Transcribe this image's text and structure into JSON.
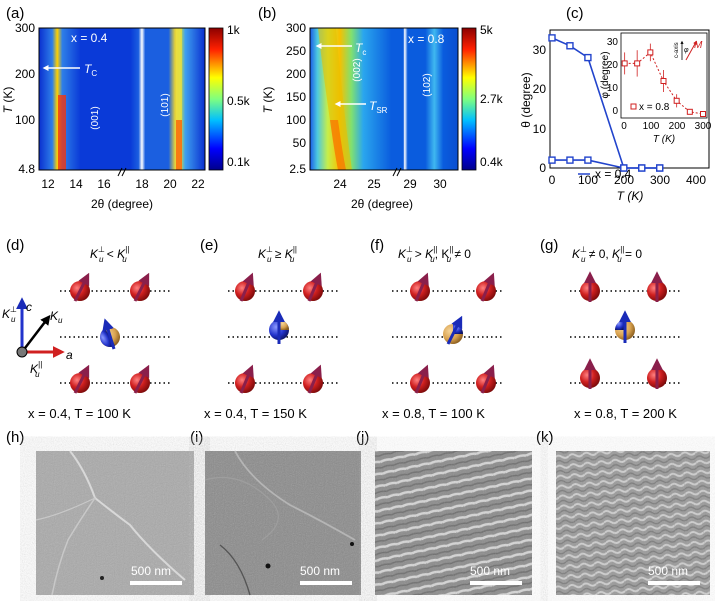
{
  "figure": {
    "panel_labels": [
      "(a)",
      "(b)",
      "(c)",
      "(d)",
      "(e)",
      "(f)",
      "(g)",
      "(h)",
      "(i)",
      "(j)",
      "(k)"
    ],
    "colors": {
      "spin_red": "#c81d1d",
      "spin_blue": "#2233cc",
      "spin_gold": "#d9a24f",
      "arrow_maroon": "#8a1f4b",
      "axis_blue": "#2233cc",
      "axis_red": "#d02020",
      "plot_blue": "#2244cc",
      "inset_red": "#d02020",
      "map_low": "#00008b",
      "map_high": "#8b0000"
    }
  },
  "panel_a": {
    "x_label_text": "x = 0.4",
    "tc": "T",
    "tc_sub": "C",
    "peak1": "(001)",
    "peak2": "(101)",
    "ylabel_T": "T",
    "ylabel_K": " (K)",
    "yticks": [
      "300",
      "200",
      "100",
      "4.8"
    ],
    "xticks": [
      "12",
      "14",
      "16",
      "18",
      "20",
      "22"
    ],
    "xlabel": "2θ (degree)",
    "cbar": [
      "1k",
      "0.5k",
      "0.1k"
    ]
  },
  "panel_b": {
    "x_label_text": "x = 0.8",
    "tc": "T",
    "tc_sub": "c",
    "tsr": "T",
    "tsr_sub": "SR",
    "peak1": "(002)",
    "peak2": "(102)",
    "ylabel_T": "T",
    "ylabel_K": " (K)",
    "yticks": [
      "300",
      "250",
      "200",
      "150",
      "100",
      "50",
      "2.5"
    ],
    "xticks": [
      "24",
      "25",
      "29",
      "30"
    ],
    "xlabel": "2θ (degree)",
    "cbar": [
      "5k",
      "2.7k",
      "0.4k"
    ]
  },
  "panel_c": {
    "ylabel": "θ (degree)",
    "xlabel": "T (K)",
    "yticks": [
      "0",
      "10",
      "20",
      "30"
    ],
    "xticks": [
      "0",
      "100",
      "200",
      "300",
      "400"
    ],
    "legend": "x = 0.4",
    "inset": {
      "ylabel": "φ (degree)",
      "xlabel": "T (K)",
      "yticks": [
        "0",
        "10",
        "20",
        "30"
      ],
      "xticks": [
        "0",
        "100",
        "200",
        "300"
      ],
      "legend": "x = 0.8",
      "c_axis": "c-axis",
      "phi": "φ",
      "M": "M"
    }
  },
  "chart_data": [
    {
      "type": "line",
      "panel": "(c)",
      "xlabel": "T (K)",
      "ylabel": "θ (degree)",
      "xlim": [
        0,
        440
      ],
      "ylim": [
        0,
        35
      ],
      "series": [
        {
          "name": "x = 0.4",
          "x": [
            0,
            50,
            100,
            200,
            250,
            300
          ],
          "y": [
            2,
            2,
            2,
            0,
            0,
            0
          ]
        },
        {
          "name": "x = 0.4",
          "x": [
            0,
            50,
            100,
            200,
            250,
            300
          ],
          "y": [
            33,
            31,
            28,
            0,
            0,
            0
          ]
        }
      ]
    },
    {
      "type": "line",
      "panel": "(c) inset",
      "xlabel": "T (K)",
      "ylabel": "φ (degree)",
      "xlim": [
        0,
        300
      ],
      "ylim": [
        0,
        35
      ],
      "series": [
        {
          "name": "x = 0.8",
          "x": [
            2.5,
            50,
            100,
            150,
            200,
            250,
            300
          ],
          "y": [
            23,
            23,
            28,
            15,
            6,
            1,
            0
          ],
          "err": [
            5,
            6,
            4,
            5,
            3,
            1,
            0
          ]
        }
      ]
    }
  ],
  "panel_d": {
    "cond_left": "K",
    "cond_sup_left": "⊥",
    "cond_sub": "u",
    "cond_op": " < ",
    "cond_sup_right": "||",
    "axis_c": "c",
    "axis_a": "a",
    "axis_ku": "K",
    "axis_ku_sub": "u",
    "axis_kperp": "K",
    "axis_kperp_sup": "⊥",
    "axis_kpar": "K",
    "axis_kpar_sup": "||",
    "caption": "x = 0.4, T = 100 K"
  },
  "panel_e": {
    "cond_op": " ≥ ",
    "caption": "x = 0.4, T = 150 K"
  },
  "panel_f": {
    "cond_op": " > ",
    "cond_tail": ", K",
    "cond_tail_op": " ≠ 0",
    "caption": "x = 0.8, T = 100 K"
  },
  "panel_g": {
    "cond_op": " ≠ 0, ",
    "cond_tail_op": " = 0",
    "caption": "x = 0.8, T = 200 K"
  },
  "micrographs": [
    {
      "panel": "(h)",
      "scalebar": "500 nm"
    },
    {
      "panel": "(i)",
      "scalebar": "500 nm"
    },
    {
      "panel": "(j)",
      "scalebar": "500 nm"
    },
    {
      "panel": "(k)",
      "scalebar": "500 nm"
    }
  ]
}
